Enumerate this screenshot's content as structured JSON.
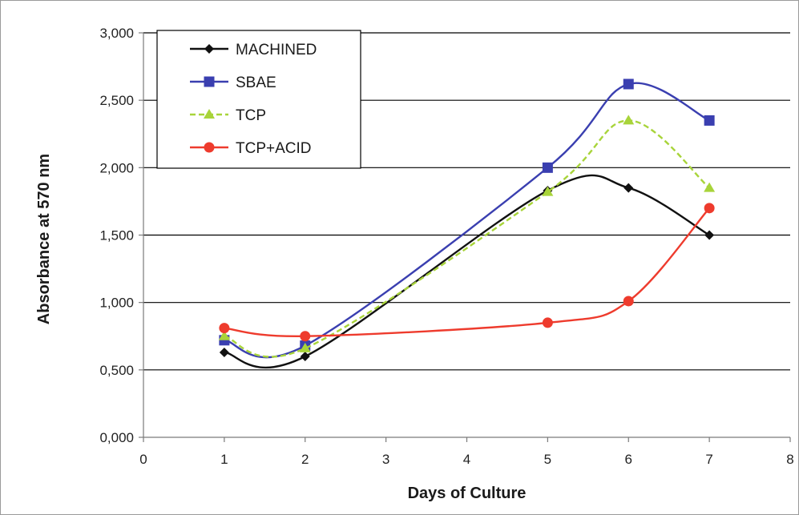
{
  "chart_data": {
    "type": "line",
    "title": "",
    "xlabel": "Days of Culture",
    "ylabel": "Absorbance at  570 nm",
    "xlim": [
      0,
      8
    ],
    "ylim": [
      0,
      3
    ],
    "x_ticks": [
      0,
      1,
      2,
      3,
      4,
      5,
      6,
      7,
      8
    ],
    "x_tick_labels": [
      "0",
      "1",
      "2",
      "3",
      "4",
      "5",
      "6",
      "7",
      "8"
    ],
    "y_ticks": [
      0,
      0.5,
      1,
      1.5,
      2,
      2.5,
      3
    ],
    "y_tick_labels": [
      "0,000",
      "0,500",
      "1,000",
      "1,500",
      "2,000",
      "2,500",
      "3,000"
    ],
    "grid": "horizontal",
    "legend_position": "top-left",
    "series": [
      {
        "name": "MACHINED",
        "color": "#111111",
        "marker": "diamond",
        "dash": "solid",
        "x": [
          1,
          2,
          5,
          6,
          7
        ],
        "y": [
          0.63,
          0.6,
          1.83,
          1.85,
          1.5
        ]
      },
      {
        "name": "SBAE",
        "color": "#3a3fb0",
        "marker": "square",
        "dash": "solid",
        "x": [
          1,
          2,
          5,
          6,
          7
        ],
        "y": [
          0.72,
          0.68,
          2.0,
          2.62,
          2.35
        ]
      },
      {
        "name": "TCP",
        "color": "#a8d43a",
        "marker": "triangle",
        "dash": "dashed",
        "x": [
          1,
          2,
          5,
          6,
          7
        ],
        "y": [
          0.75,
          0.66,
          1.82,
          2.35,
          1.85
        ]
      },
      {
        "name": "TCP+ACID",
        "color": "#ee3b2d",
        "marker": "circle",
        "dash": "solid",
        "x": [
          1,
          2,
          5,
          6,
          7
        ],
        "y": [
          0.81,
          0.75,
          0.85,
          1.01,
          1.7
        ]
      }
    ]
  }
}
